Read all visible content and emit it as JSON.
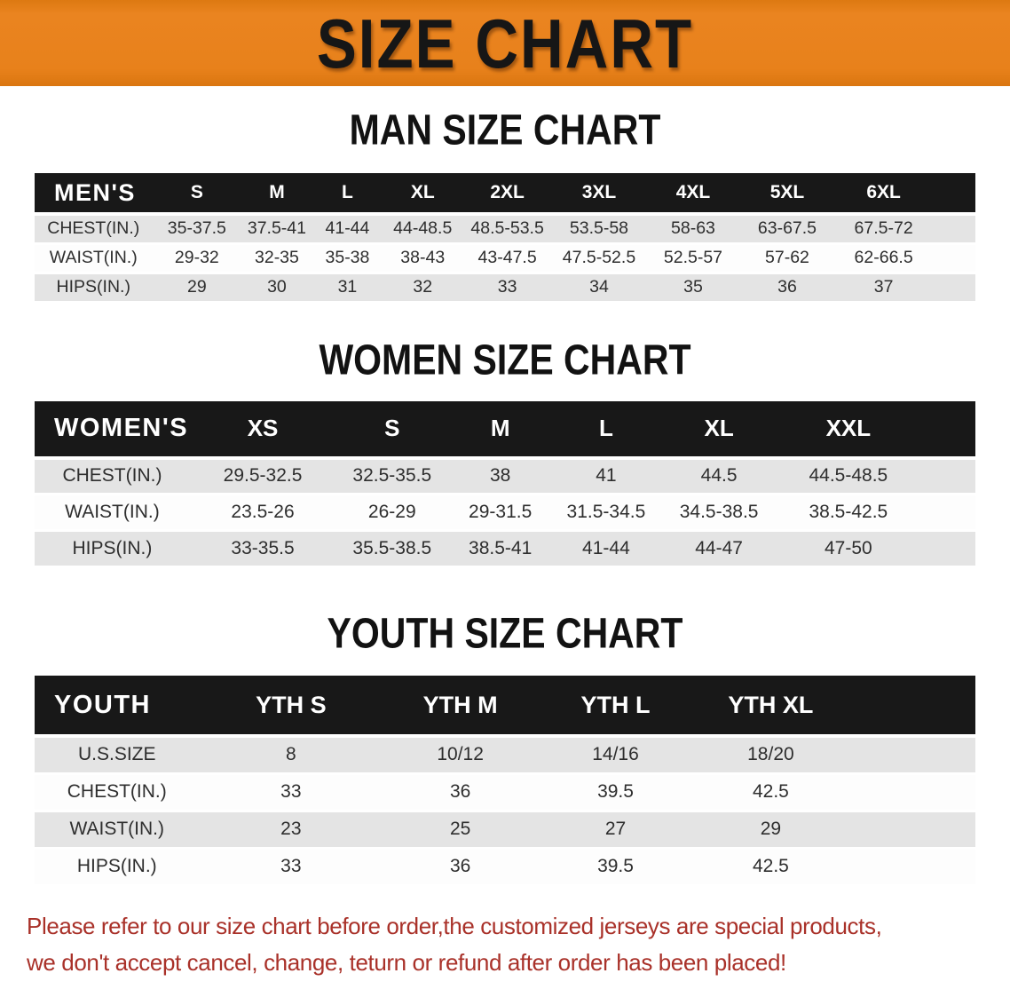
{
  "banner": {
    "title": "SIZE CHART",
    "background_color": "#e8811b",
    "title_color": "#161616"
  },
  "tables": [
    {
      "title": "MAN SIZE CHART",
      "header_label": "MEN'S",
      "columns": [
        "S",
        "M",
        "L",
        "XL",
        "2XL",
        "3XL",
        "4XL",
        "5XL",
        "6XL"
      ],
      "rows": [
        {
          "label": "CHEST(IN.)",
          "values": [
            "35-37.5",
            "37.5-41",
            "41-44",
            "44-48.5",
            "48.5-53.5",
            "53.5-58",
            "58-63",
            "63-67.5",
            "67.5-72"
          ]
        },
        {
          "label": "WAIST(IN.)",
          "values": [
            "29-32",
            "32-35",
            "35-38",
            "38-43",
            "43-47.5",
            "47.5-52.5",
            "52.5-57",
            "57-62",
            "62-66.5"
          ]
        },
        {
          "label": "HIPS(IN.)",
          "values": [
            "29",
            "30",
            "31",
            "32",
            "33",
            "34",
            "35",
            "36",
            "37"
          ]
        }
      ]
    },
    {
      "title": "WOMEN SIZE CHART",
      "header_label": "WOMEN'S",
      "columns": [
        "XS",
        "S",
        "M",
        "L",
        "XL",
        "XXL"
      ],
      "rows": [
        {
          "label": "CHEST(IN.)",
          "values": [
            "29.5-32.5",
            "32.5-35.5",
            "38",
            "41",
            "44.5",
            "44.5-48.5"
          ]
        },
        {
          "label": "WAIST(IN.)",
          "values": [
            "23.5-26",
            "26-29",
            "29-31.5",
            "31.5-34.5",
            "34.5-38.5",
            "38.5-42.5"
          ]
        },
        {
          "label": "HIPS(IN.)",
          "values": [
            "33-35.5",
            "35.5-38.5",
            "38.5-41",
            "41-44",
            "44-47",
            "47-50"
          ]
        }
      ]
    },
    {
      "title": "YOUTH SIZE CHART",
      "header_label": "YOUTH",
      "columns": [
        "YTH S",
        "YTH M",
        "YTH L",
        "YTH XL"
      ],
      "rows": [
        {
          "label": "U.S.SIZE",
          "values": [
            "8",
            "10/12",
            "14/16",
            "18/20"
          ]
        },
        {
          "label": "CHEST(IN.)",
          "values": [
            "33",
            "36",
            "39.5",
            "42.5"
          ]
        },
        {
          "label": "WAIST(IN.)",
          "values": [
            "23",
            "25",
            "27",
            "29"
          ]
        },
        {
          "label": "HIPS(IN.)",
          "values": [
            "33",
            "36",
            "39.5",
            "42.5"
          ]
        }
      ]
    }
  ],
  "footer": {
    "line1": "Please refer to our size chart before order,the customized jerseys are special products,",
    "line2": "we don't accept cancel, change, teturn or refund after order has been placed!",
    "text_color": "#a93129"
  },
  "colors": {
    "banner_orange": "#e8811b",
    "header_band_black": "#181818",
    "row_stripe_gray": "#e4e4e4",
    "note_red": "#a93129"
  }
}
